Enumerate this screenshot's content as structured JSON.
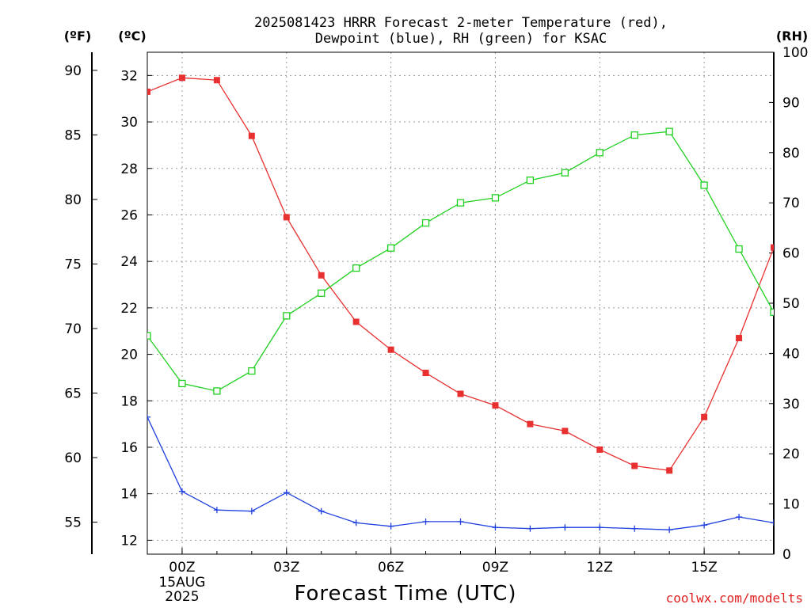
{
  "chart_data": {
    "type": "line",
    "title_lines": [
      "2025081423 HRRR Forecast 2-meter Temperature (red),",
      "Dewpoint (blue), RH (green) for KSAC"
    ],
    "xlabel": "Forecast Time (UTC)",
    "credit": "coolwx.com/modelts",
    "unit_labels": {
      "fahrenheit": "(ºF)",
      "celsius": "(ºC)",
      "rh": "(RH)"
    },
    "x_hours": [
      -1,
      0,
      1,
      2,
      3,
      4,
      5,
      6,
      7,
      8,
      9,
      10,
      11,
      12,
      13,
      14,
      15,
      16,
      17
    ],
    "xlim": [
      -1,
      17
    ],
    "x_ticks": [
      {
        "hour": 0,
        "label": "00Z",
        "sub1": "15AUG",
        "sub2": "2025"
      },
      {
        "hour": 3,
        "label": "03Z"
      },
      {
        "hour": 6,
        "label": "06Z"
      },
      {
        "hour": 9,
        "label": "09Z"
      },
      {
        "hour": 12,
        "label": "12Z"
      },
      {
        "hour": 15,
        "label": "15Z"
      }
    ],
    "celsius_axis": {
      "ylim": [
        11.4,
        33.0
      ],
      "ticks": [
        12,
        14,
        16,
        18,
        20,
        22,
        24,
        26,
        28,
        30,
        32
      ]
    },
    "fahrenheit_axis": {
      "ticks": [
        55,
        60,
        65,
        70,
        75,
        80,
        85,
        90
      ]
    },
    "rh_axis": {
      "ylim": [
        0,
        100
      ],
      "ticks": [
        0,
        10,
        20,
        30,
        40,
        50,
        60,
        70,
        80,
        90,
        100
      ]
    },
    "grid": true,
    "series": [
      {
        "key": "temperature",
        "color": "#e83030",
        "marker": "filled-square",
        "axis": "celsius",
        "values": [
          31.3,
          31.9,
          31.8,
          29.4,
          25.9,
          23.4,
          21.4,
          20.2,
          19.2,
          18.3,
          17.8,
          17.0,
          16.7,
          15.9,
          15.2,
          15.0,
          17.3,
          20.7,
          24.6
        ]
      },
      {
        "key": "dewpoint",
        "color": "#2040e0",
        "marker": "plus",
        "axis": "celsius",
        "values": [
          17.3,
          14.1,
          13.3,
          13.25,
          14.05,
          13.25,
          12.75,
          12.6,
          12.8,
          12.8,
          12.55,
          12.5,
          12.55,
          12.55,
          12.5,
          12.45,
          12.65,
          13.0,
          12.75
        ]
      },
      {
        "key": "rh",
        "color": "#20d020",
        "marker": "open-square",
        "axis": "rh",
        "values": [
          43.5,
          34.0,
          32.5,
          36.5,
          47.5,
          52.0,
          57.0,
          61.0,
          66.0,
          70.0,
          71.0,
          74.5,
          76.0,
          80.0,
          83.5,
          84.2,
          73.5,
          60.8,
          48.2
        ]
      }
    ]
  }
}
